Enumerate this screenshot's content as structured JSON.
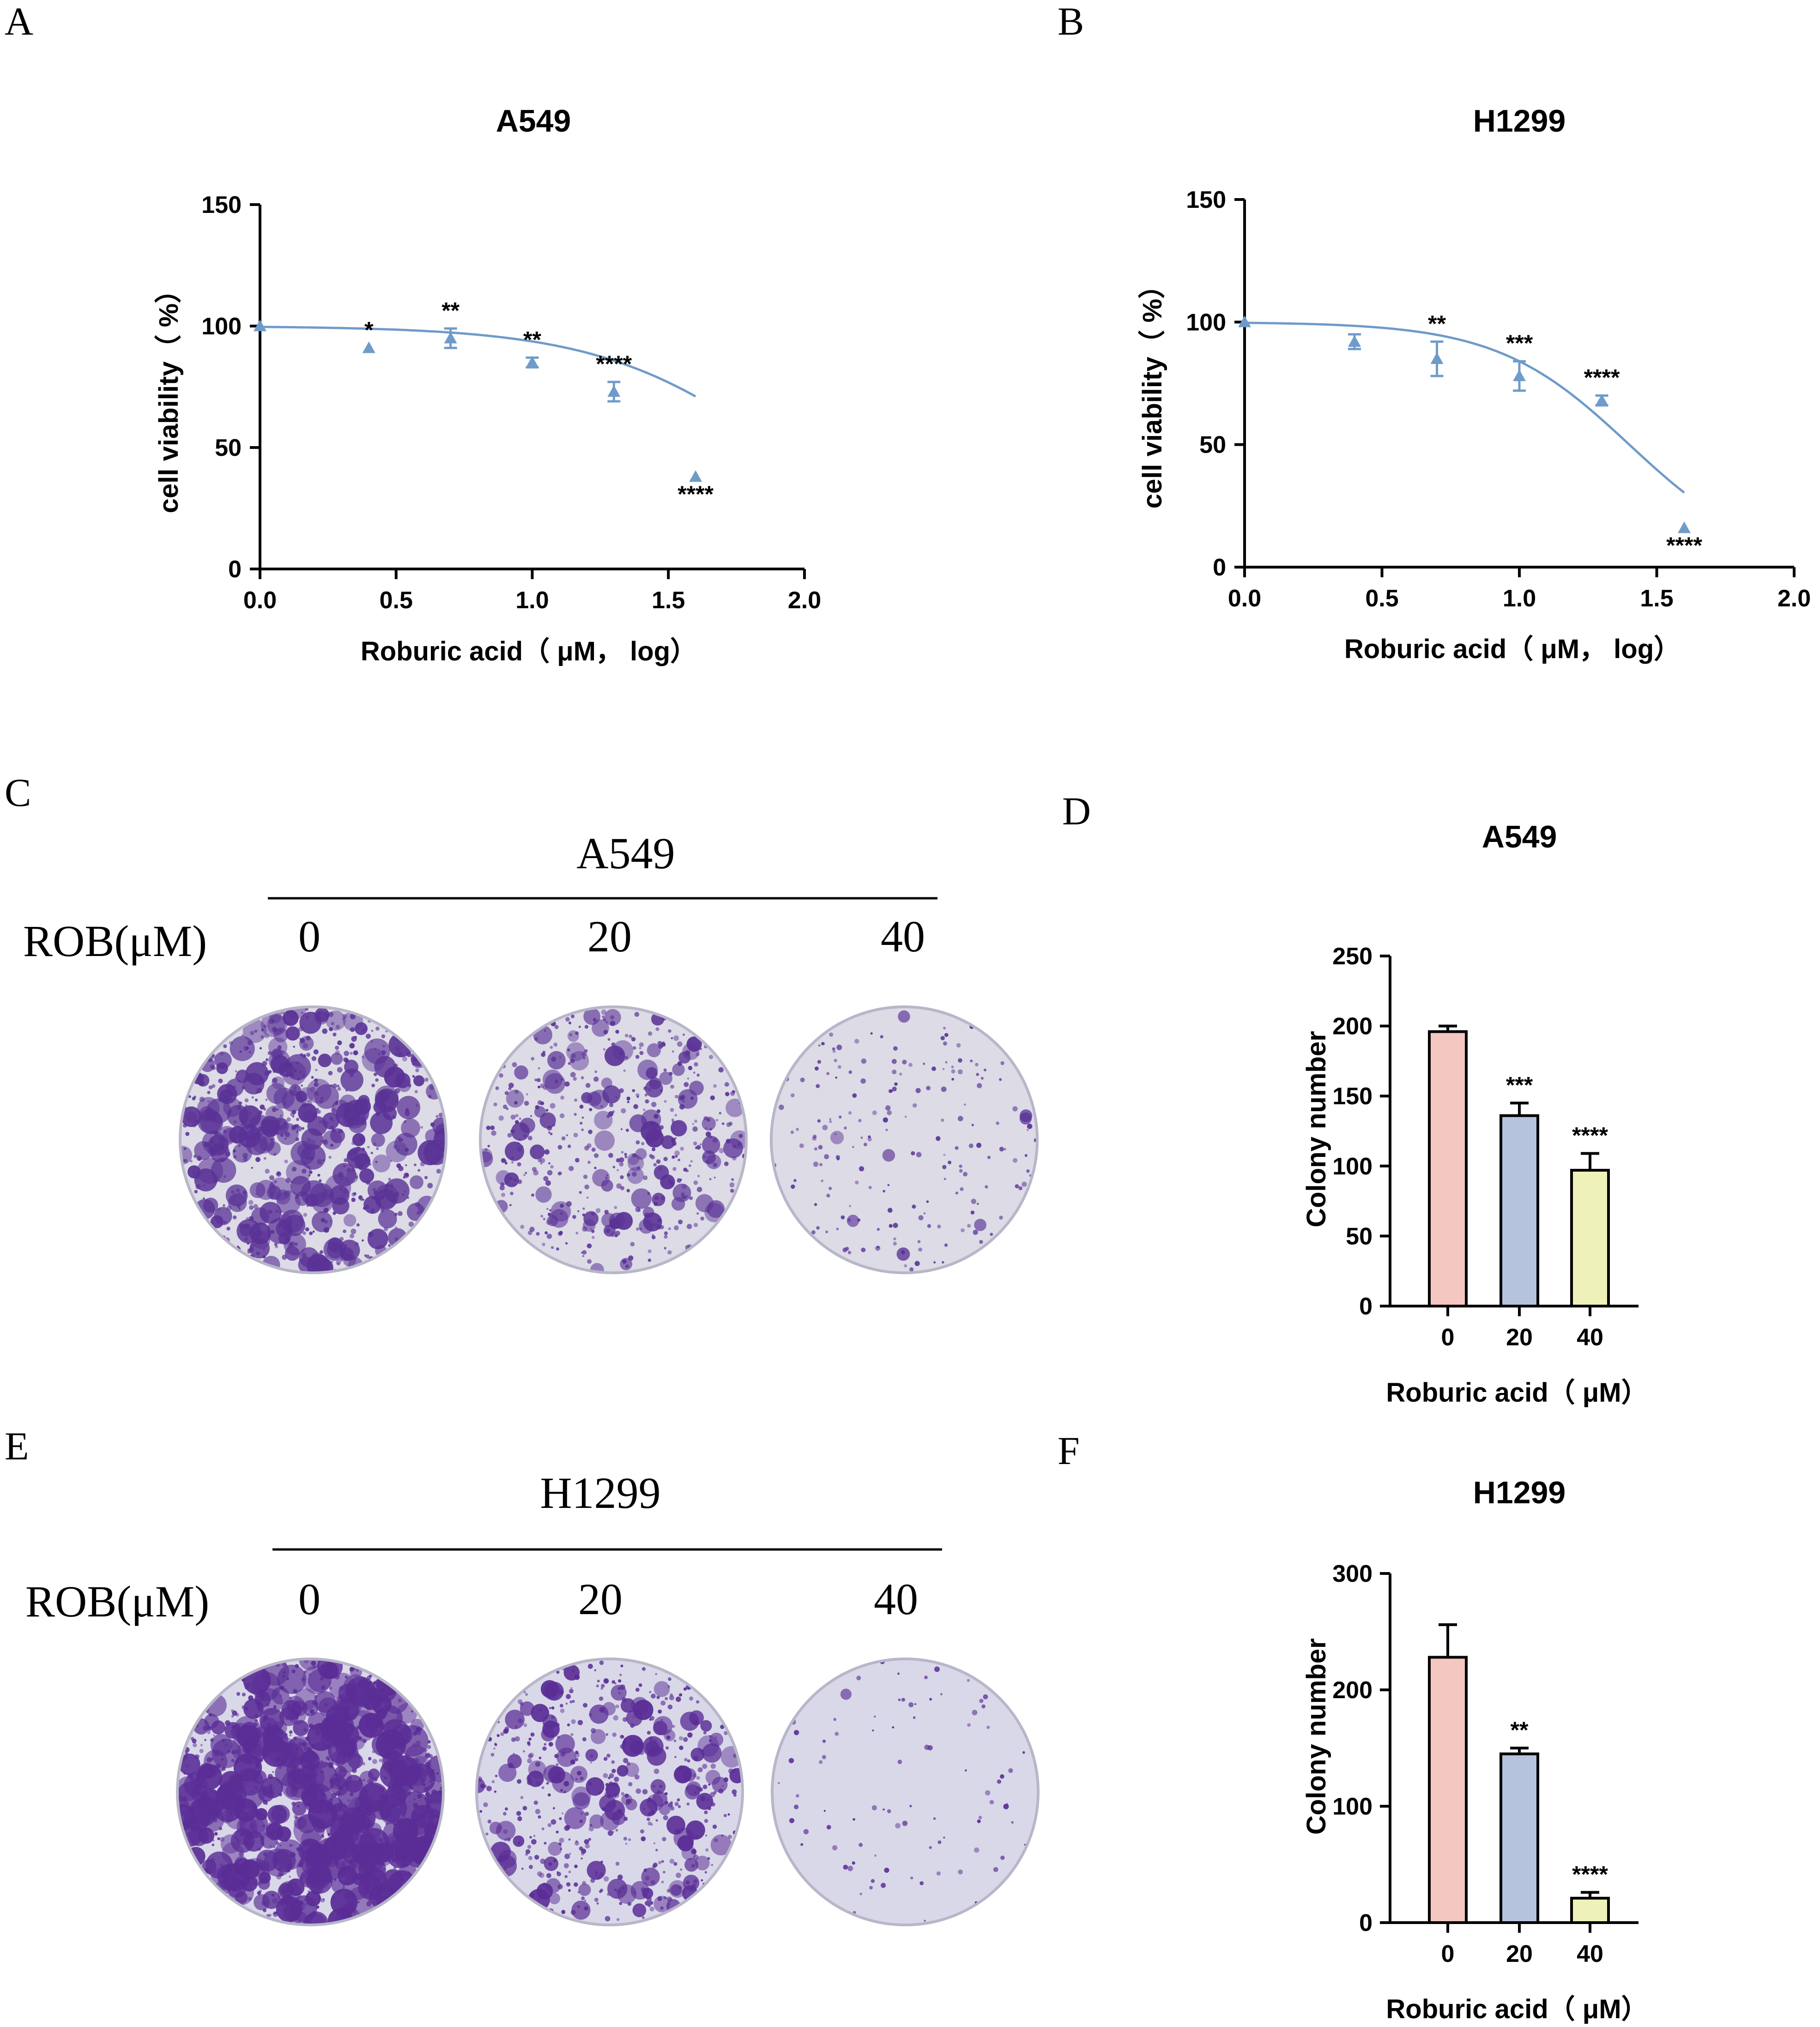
{
  "panel_labels": [
    "A",
    "B",
    "C",
    "D",
    "E",
    "F"
  ],
  "plates": [
    {
      "title": "H1299",
      "section_label": "E",
      "row_label": "ROB(μM)",
      "doses": [
        "0",
        "20",
        "40"
      ],
      "density": [
        1.0,
        0.55,
        0.03
      ],
      "colony_color": "#5a2d96",
      "bg_color": "#d9d8e8"
    }
  ],
  "plates_a549": {
    "title": "A549",
    "section_label": "C",
    "row_label": "ROB(μM)",
    "doses": [
      "0",
      "20",
      "40"
    ],
    "density": [
      0.75,
      0.5,
      0.15
    ],
    "colony_color": "#5a3296",
    "bg_color": "#dcdbe6"
  },
  "chart_data": [
    {
      "id": "A",
      "type": "scatter",
      "title": "A549",
      "xlabel": "Roburic acid（ μM， log）",
      "ylabel": "cell viability（ %）",
      "xlim": [
        0,
        2.0
      ],
      "ylim": [
        0,
        150
      ],
      "xticks": [
        "0.0",
        "0.5",
        "1.0",
        "1.5",
        "2.0"
      ],
      "yticks": [
        "0",
        "50",
        "100",
        "150"
      ],
      "points": [
        {
          "x": 0.0,
          "y": 100,
          "err": 0,
          "sig": ""
        },
        {
          "x": 0.4,
          "y": 91,
          "err": 0,
          "sig": "*"
        },
        {
          "x": 0.7,
          "y": 95,
          "err": 4,
          "sig": "**"
        },
        {
          "x": 1.0,
          "y": 85,
          "err": 2,
          "sig": "**"
        },
        {
          "x": 1.3,
          "y": 73,
          "err": 4,
          "sig": "****"
        },
        {
          "x": 1.6,
          "y": 38,
          "err": 0,
          "sig": "****"
        }
      ],
      "fit": {
        "top": 100,
        "log_ic50": 1.9,
        "hill": 1.3,
        "x_range": [
          0.0,
          1.6
        ]
      },
      "color": "#6f9bc8"
    },
    {
      "id": "B",
      "type": "scatter",
      "title": "H1299",
      "xlabel": "Roburic acid（ μM， log）",
      "ylabel": "cell viability（ %）",
      "xlim": [
        0,
        2.0
      ],
      "ylim": [
        0,
        150
      ],
      "xticks": [
        "0.0",
        "0.5",
        "1.0",
        "1.5",
        "2.0"
      ],
      "yticks": [
        "0",
        "50",
        "100",
        "150"
      ],
      "points": [
        {
          "x": 0.0,
          "y": 100,
          "err": 0,
          "sig": ""
        },
        {
          "x": 0.4,
          "y": 92,
          "err": 3,
          "sig": ""
        },
        {
          "x": 0.7,
          "y": 85,
          "err": 7,
          "sig": "**"
        },
        {
          "x": 1.0,
          "y": 78,
          "err": 6,
          "sig": "***"
        },
        {
          "x": 1.3,
          "y": 68,
          "err": 2,
          "sig": "****"
        },
        {
          "x": 1.6,
          "y": 16,
          "err": 0,
          "sig": "****"
        }
      ],
      "fit": {
        "top": 100,
        "log_ic50": 1.4,
        "hill": 1.8,
        "x_range": [
          0.0,
          1.6
        ]
      },
      "color": "#6f9bc8"
    },
    {
      "id": "D",
      "type": "bar",
      "title": "A549",
      "xlabel": "Roburic acid（ μM）",
      "ylabel": "Colony number",
      "categories": [
        "0",
        "20",
        "40"
      ],
      "values": [
        196,
        136,
        97
      ],
      "errors": [
        4,
        9,
        12
      ],
      "sig": [
        "",
        "***",
        "****"
      ],
      "ylim": [
        0,
        250
      ],
      "yticks": [
        "0",
        "50",
        "100",
        "150",
        "200",
        "250"
      ],
      "colors": [
        "#f4c7c0",
        "#b6c3dd",
        "#eef2b8"
      ]
    },
    {
      "id": "F",
      "type": "bar",
      "title": "H1299",
      "xlabel": "Roburic acid（ μM）",
      "ylabel": "Colony number",
      "categories": [
        "0",
        "20",
        "40"
      ],
      "values": [
        228,
        145,
        21
      ],
      "errors": [
        28,
        5,
        5
      ],
      "sig": [
        "",
        "**",
        "****"
      ],
      "ylim": [
        0,
        300
      ],
      "yticks": [
        "0",
        "100",
        "200",
        "300"
      ],
      "colors": [
        "#f4c7c0",
        "#b6c3dd",
        "#eef2b8"
      ]
    }
  ]
}
